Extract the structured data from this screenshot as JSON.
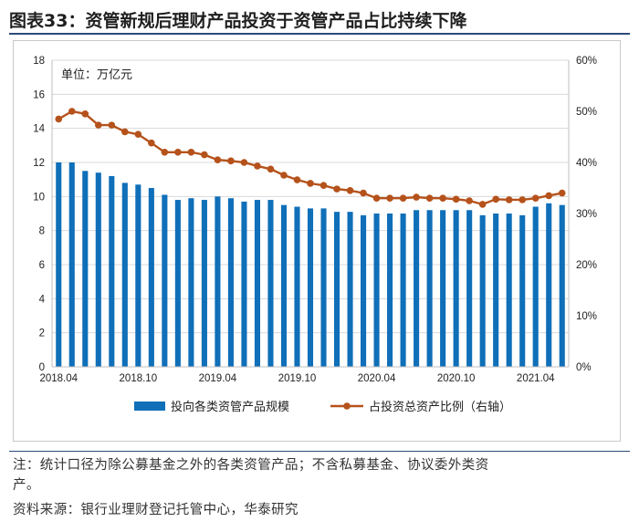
{
  "figure": {
    "label": "图表33：",
    "title": "资管新规后理财产品投资于资管产品占比持续下降"
  },
  "chart_data": {
    "type": "bar+line",
    "unit_label": "单位：万亿元",
    "categories": [
      "2018.04",
      "2018.05",
      "2018.06",
      "2018.07",
      "2018.08",
      "2018.09",
      "2018.10",
      "2018.11",
      "2018.12",
      "2019.01",
      "2019.02",
      "2019.03",
      "2019.04",
      "2019.05",
      "2019.06",
      "2019.07",
      "2019.08",
      "2019.09",
      "2019.10",
      "2019.11",
      "2019.12",
      "2020.01",
      "2020.02",
      "2020.03",
      "2020.04",
      "2020.05",
      "2020.06",
      "2020.07",
      "2020.08",
      "2020.09",
      "2020.10",
      "2020.11",
      "2020.12",
      "2021.01",
      "2021.02",
      "2021.03",
      "2021.04",
      "2021.05",
      "2021.06"
    ],
    "x_tick_labels": [
      "2018.04",
      "2018.10",
      "2019.04",
      "2019.10",
      "2020.04",
      "2020.10",
      "2021.04"
    ],
    "series": [
      {
        "name": "投向各类资管产品规模",
        "type": "bar",
        "axis": "left",
        "color": "#0f6fb8",
        "values": [
          12.0,
          12.0,
          11.5,
          11.4,
          11.2,
          10.8,
          10.7,
          10.5,
          10.1,
          9.8,
          9.9,
          9.8,
          10.0,
          9.9,
          9.7,
          9.8,
          9.8,
          9.5,
          9.4,
          9.3,
          9.3,
          9.1,
          9.1,
          8.9,
          9.0,
          9.0,
          9.0,
          9.2,
          9.2,
          9.2,
          9.2,
          9.2,
          8.9,
          9.0,
          9.0,
          8.9,
          9.4,
          9.6,
          9.5
        ]
      },
      {
        "name": "占投资总资产比例（右轴）",
        "type": "line",
        "axis": "right",
        "color": "#b5521b",
        "values": [
          48.5,
          50.0,
          49.5,
          47.3,
          47.3,
          46.0,
          45.5,
          43.8,
          42.0,
          42.0,
          42.0,
          41.5,
          40.5,
          40.3,
          40.0,
          39.3,
          38.7,
          37.5,
          36.6,
          35.9,
          35.5,
          34.8,
          34.5,
          34.0,
          33.0,
          33.0,
          33.0,
          33.2,
          33.0,
          33.0,
          32.8,
          32.5,
          31.8,
          32.8,
          32.7,
          32.7,
          33.0,
          33.5,
          34.0
        ]
      }
    ],
    "y_left": {
      "min": 0,
      "max": 18,
      "step": 2
    },
    "y_right": {
      "min": 0,
      "max": 60,
      "step": 10,
      "suffix": "%"
    },
    "legend_position": "bottom"
  },
  "notes": {
    "note_line1": "注：统计口径为除公募基金之外的各类资管产品；不含私募基金、协议委外类资",
    "note_line2": "产。",
    "source": "资料来源：银行业理财登记托管中心，华泰研究"
  }
}
